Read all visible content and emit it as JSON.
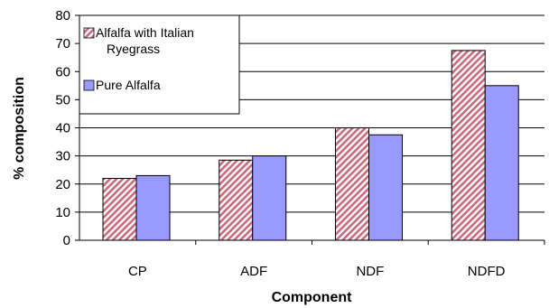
{
  "chart_data": {
    "type": "bar",
    "categories": [
      "CP",
      "ADF",
      "NDF",
      "NDFD"
    ],
    "series": [
      {
        "name": "Alfalfa with Italian Ryegrass",
        "values": [
          22,
          28.5,
          40,
          67.5
        ],
        "color": "#c86b7a",
        "pattern": "diagonal-hatch"
      },
      {
        "name": "Pure Alfalfa",
        "values": [
          23,
          30,
          37.5,
          55
        ],
        "color": "#9999ff",
        "pattern": "solid"
      }
    ],
    "title": "",
    "xlabel": "Component",
    "ylabel": "% composition",
    "ylim": [
      0,
      80
    ],
    "yticks": [
      0,
      10,
      20,
      30,
      40,
      50,
      60,
      70,
      80
    ],
    "grid": true,
    "legend_position": "top-left"
  }
}
